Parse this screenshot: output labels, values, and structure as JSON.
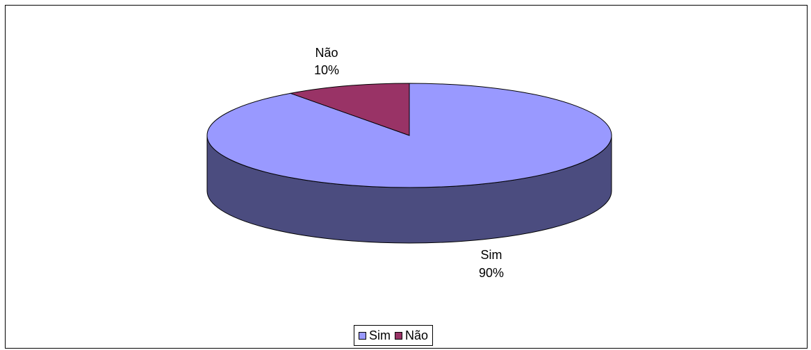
{
  "chart_data": {
    "type": "pie",
    "style": "3d-exploded-none",
    "categories": [
      "Sim",
      "Não"
    ],
    "values": [
      90,
      10
    ],
    "value_labels": [
      "90%",
      "10%"
    ],
    "colors": {
      "Sim": "#9999ff",
      "Não": "#993366",
      "Sim_side": "#4b4c7f",
      "Não_side": "#4c1933"
    },
    "legend": {
      "position": "bottom",
      "items": [
        "Sim",
        "Não"
      ]
    },
    "title": ""
  }
}
